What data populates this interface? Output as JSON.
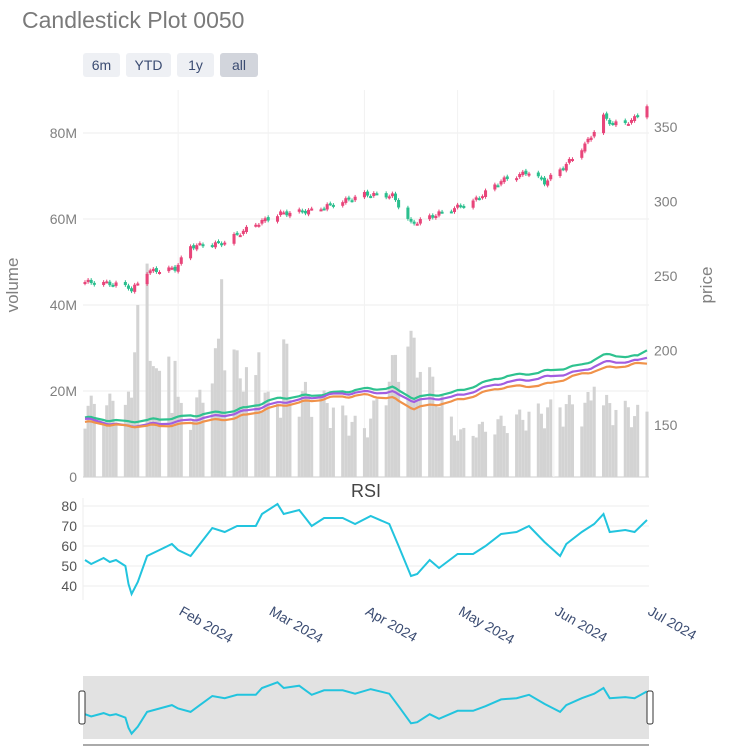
{
  "chart_title": "Candlestick Plot 0050",
  "range_buttons": [
    {
      "label": "6m",
      "active": false
    },
    {
      "label": "YTD",
      "active": false
    },
    {
      "label": "1y",
      "active": false
    },
    {
      "label": "all",
      "active": true
    }
  ],
  "colors": {
    "increasing": "#e8457a",
    "decreasing": "#2bbf8e",
    "volume": "#d3d3d3",
    "ma_short": "#2ec28f",
    "ma_mid": "#a25de0",
    "ma_long": "#f0924a",
    "rsi": "#22c4de",
    "axis_text": "#808080",
    "date_text": "#3b4c72",
    "slider_bg": "#e2e2e2"
  },
  "chart_data": {
    "type": "candlestick",
    "xlabel": "",
    "volume_axis": {
      "label": "volume",
      "range": [
        0,
        90000000
      ],
      "ticks": [
        "0",
        "20M",
        "40M",
        "60M",
        "80M"
      ],
      "tick_values": [
        0,
        20000000,
        40000000,
        60000000,
        80000000
      ]
    },
    "price_axis": {
      "label": "price",
      "range": [
        115,
        375
      ],
      "ticks": [
        "150",
        "200",
        "250",
        "300",
        "350"
      ],
      "tick_values": [
        150,
        200,
        250,
        300,
        350
      ]
    },
    "rsi_panel": {
      "title": "RSI",
      "range": [
        33,
        83
      ],
      "ticks": [
        "40",
        "50",
        "60",
        "70",
        "80"
      ],
      "tick_values": [
        40,
        50,
        60,
        70,
        80
      ]
    },
    "date_range": [
      "2024-01-02",
      "2024-07-01"
    ],
    "date_ticks": [
      {
        "label": "Feb 2024",
        "date": "2024-02-01"
      },
      {
        "label": "Mar 2024",
        "date": "2024-03-01"
      },
      {
        "label": "Apr 2024",
        "date": "2024-04-01"
      },
      {
        "label": "May 2024",
        "date": "2024-05-01"
      },
      {
        "label": "Jun 2024",
        "date": "2024-06-01"
      },
      {
        "label": "Jul 2024",
        "date": "2024-07-01"
      }
    ],
    "close_keypoints": [
      [
        "2024-01-02",
        246
      ],
      [
        "2024-01-10",
        245
      ],
      [
        "2024-01-16",
        243
      ],
      [
        "2024-01-17",
        240
      ],
      [
        "2024-01-22",
        253
      ],
      [
        "2024-01-31",
        255
      ],
      [
        "2024-02-05",
        270
      ],
      [
        "2024-02-15",
        272
      ],
      [
        "2024-02-26",
        285
      ],
      [
        "2024-03-05",
        292
      ],
      [
        "2024-03-15",
        294
      ],
      [
        "2024-03-25",
        300
      ],
      [
        "2024-04-01",
        305
      ],
      [
        "2024-04-10",
        304
      ],
      [
        "2024-04-16",
        285
      ],
      [
        "2024-04-25",
        292
      ],
      [
        "2024-05-06",
        300
      ],
      [
        "2024-05-15",
        314
      ],
      [
        "2024-05-24",
        320
      ],
      [
        "2024-05-29",
        313
      ],
      [
        "2024-06-05",
        325
      ],
      [
        "2024-06-11",
        338
      ],
      [
        "2024-06-17",
        357
      ],
      [
        "2024-06-20",
        352
      ],
      [
        "2024-06-26",
        354
      ],
      [
        "2024-07-01",
        365
      ]
    ],
    "volume_keypoints": [
      [
        "2024-01-02",
        15000000
      ],
      [
        "2024-01-17",
        16000000
      ],
      [
        "2024-01-22",
        40000000
      ],
      [
        "2024-01-26",
        20000000
      ],
      [
        "2024-02-05",
        12000000
      ],
      [
        "2024-02-15",
        28000000
      ],
      [
        "2024-03-01",
        16000000
      ],
      [
        "2024-03-15",
        18000000
      ],
      [
        "2024-04-01",
        10000000
      ],
      [
        "2024-04-15",
        30000000
      ],
      [
        "2024-05-01",
        9000000
      ],
      [
        "2024-06-03",
        15000000
      ],
      [
        "2024-06-14",
        16000000
      ],
      [
        "2024-07-01",
        13000000
      ]
    ],
    "volume_spikes": [
      [
        "2024-01-18",
        29000000
      ],
      [
        "2024-01-19",
        40000000
      ],
      [
        "2024-01-23",
        27000000
      ],
      [
        "2024-01-29",
        28000000
      ],
      [
        "2024-01-31",
        27000000
      ],
      [
        "2024-02-15",
        46000000
      ],
      [
        "2024-02-27",
        29000000
      ],
      [
        "2024-03-06",
        32000000
      ],
      [
        "2024-03-07",
        31000000
      ],
      [
        "2024-04-16",
        34000000
      ],
      [
        "2024-06-14",
        21000000
      ]
    ],
    "moving_averages": [
      {
        "name": "MA short",
        "key": "ma_short",
        "points": [
          [
            "2024-01-02",
            155
          ],
          [
            "2024-01-15",
            152
          ],
          [
            "2024-02-01",
            155
          ],
          [
            "2024-02-20",
            160
          ],
          [
            "2024-03-05",
            168
          ],
          [
            "2024-03-20",
            171
          ],
          [
            "2024-04-01",
            174
          ],
          [
            "2024-04-10",
            175
          ],
          [
            "2024-04-17",
            168
          ],
          [
            "2024-04-30",
            172
          ],
          [
            "2024-05-15",
            182
          ],
          [
            "2024-05-29",
            186
          ],
          [
            "2024-06-10",
            190
          ],
          [
            "2024-06-17",
            197
          ],
          [
            "2024-06-28",
            196
          ],
          [
            "2024-07-01",
            200
          ]
        ]
      },
      {
        "name": "MA mid",
        "key": "ma_mid",
        "points": [
          [
            "2024-01-02",
            154
          ],
          [
            "2024-01-15",
            149
          ],
          [
            "2024-02-01",
            152
          ],
          [
            "2024-02-20",
            158
          ],
          [
            "2024-03-05",
            165
          ],
          [
            "2024-03-20",
            170
          ],
          [
            "2024-04-01",
            172
          ],
          [
            "2024-04-10",
            172
          ],
          [
            "2024-04-17",
            166
          ],
          [
            "2024-04-30",
            169
          ],
          [
            "2024-05-15",
            178
          ],
          [
            "2024-05-29",
            182
          ],
          [
            "2024-06-10",
            186
          ],
          [
            "2024-06-17",
            192
          ],
          [
            "2024-06-28",
            193
          ],
          [
            "2024-07-01",
            195
          ]
        ]
      },
      {
        "name": "MA long",
        "key": "ma_long",
        "points": [
          [
            "2024-01-02",
            152
          ],
          [
            "2024-01-15",
            149
          ],
          [
            "2024-02-01",
            150
          ],
          [
            "2024-02-20",
            155
          ],
          [
            "2024-03-05",
            163
          ],
          [
            "2024-03-20",
            168
          ],
          [
            "2024-04-01",
            170
          ],
          [
            "2024-04-10",
            168
          ],
          [
            "2024-04-17",
            161
          ],
          [
            "2024-04-30",
            166
          ],
          [
            "2024-05-15",
            175
          ],
          [
            "2024-05-29",
            177
          ],
          [
            "2024-06-10",
            184
          ],
          [
            "2024-06-17",
            188
          ],
          [
            "2024-06-28",
            191
          ],
          [
            "2024-07-01",
            191
          ]
        ]
      }
    ],
    "rsi_points": [
      [
        "2024-01-02",
        53
      ],
      [
        "2024-01-04",
        51
      ],
      [
        "2024-01-08",
        54
      ],
      [
        "2024-01-10",
        52
      ],
      [
        "2024-01-12",
        53
      ],
      [
        "2024-01-15",
        50
      ],
      [
        "2024-01-16",
        41
      ],
      [
        "2024-01-17",
        36
      ],
      [
        "2024-01-19",
        42
      ],
      [
        "2024-01-22",
        55
      ],
      [
        "2024-01-26",
        58
      ],
      [
        "2024-01-30",
        61
      ],
      [
        "2024-02-01",
        58
      ],
      [
        "2024-02-05",
        55
      ],
      [
        "2024-02-08",
        61
      ],
      [
        "2024-02-12",
        69
      ],
      [
        "2024-02-16",
        67
      ],
      [
        "2024-02-20",
        70
      ],
      [
        "2024-02-26",
        70
      ],
      [
        "2024-02-28",
        76
      ],
      [
        "2024-03-04",
        81
      ],
      [
        "2024-03-06",
        76
      ],
      [
        "2024-03-11",
        78
      ],
      [
        "2024-03-13",
        74
      ],
      [
        "2024-03-15",
        70
      ],
      [
        "2024-03-19",
        74
      ],
      [
        "2024-03-25",
        74
      ],
      [
        "2024-03-29",
        71
      ],
      [
        "2024-04-03",
        75
      ],
      [
        "2024-04-09",
        71
      ],
      [
        "2024-04-12",
        60
      ],
      [
        "2024-04-16",
        45
      ],
      [
        "2024-04-18",
        46
      ],
      [
        "2024-04-22",
        53
      ],
      [
        "2024-04-25",
        49
      ],
      [
        "2024-05-01",
        56
      ],
      [
        "2024-05-06",
        56
      ],
      [
        "2024-05-10",
        60
      ],
      [
        "2024-05-15",
        66
      ],
      [
        "2024-05-20",
        67
      ],
      [
        "2024-05-24",
        70
      ],
      [
        "2024-05-29",
        62
      ],
      [
        "2024-06-03",
        55
      ],
      [
        "2024-06-05",
        61
      ],
      [
        "2024-06-10",
        67
      ],
      [
        "2024-06-14",
        71
      ],
      [
        "2024-06-17",
        76
      ],
      [
        "2024-06-19",
        67
      ],
      [
        "2024-06-24",
        68
      ],
      [
        "2024-06-27",
        67
      ],
      [
        "2024-07-01",
        73
      ]
    ]
  }
}
